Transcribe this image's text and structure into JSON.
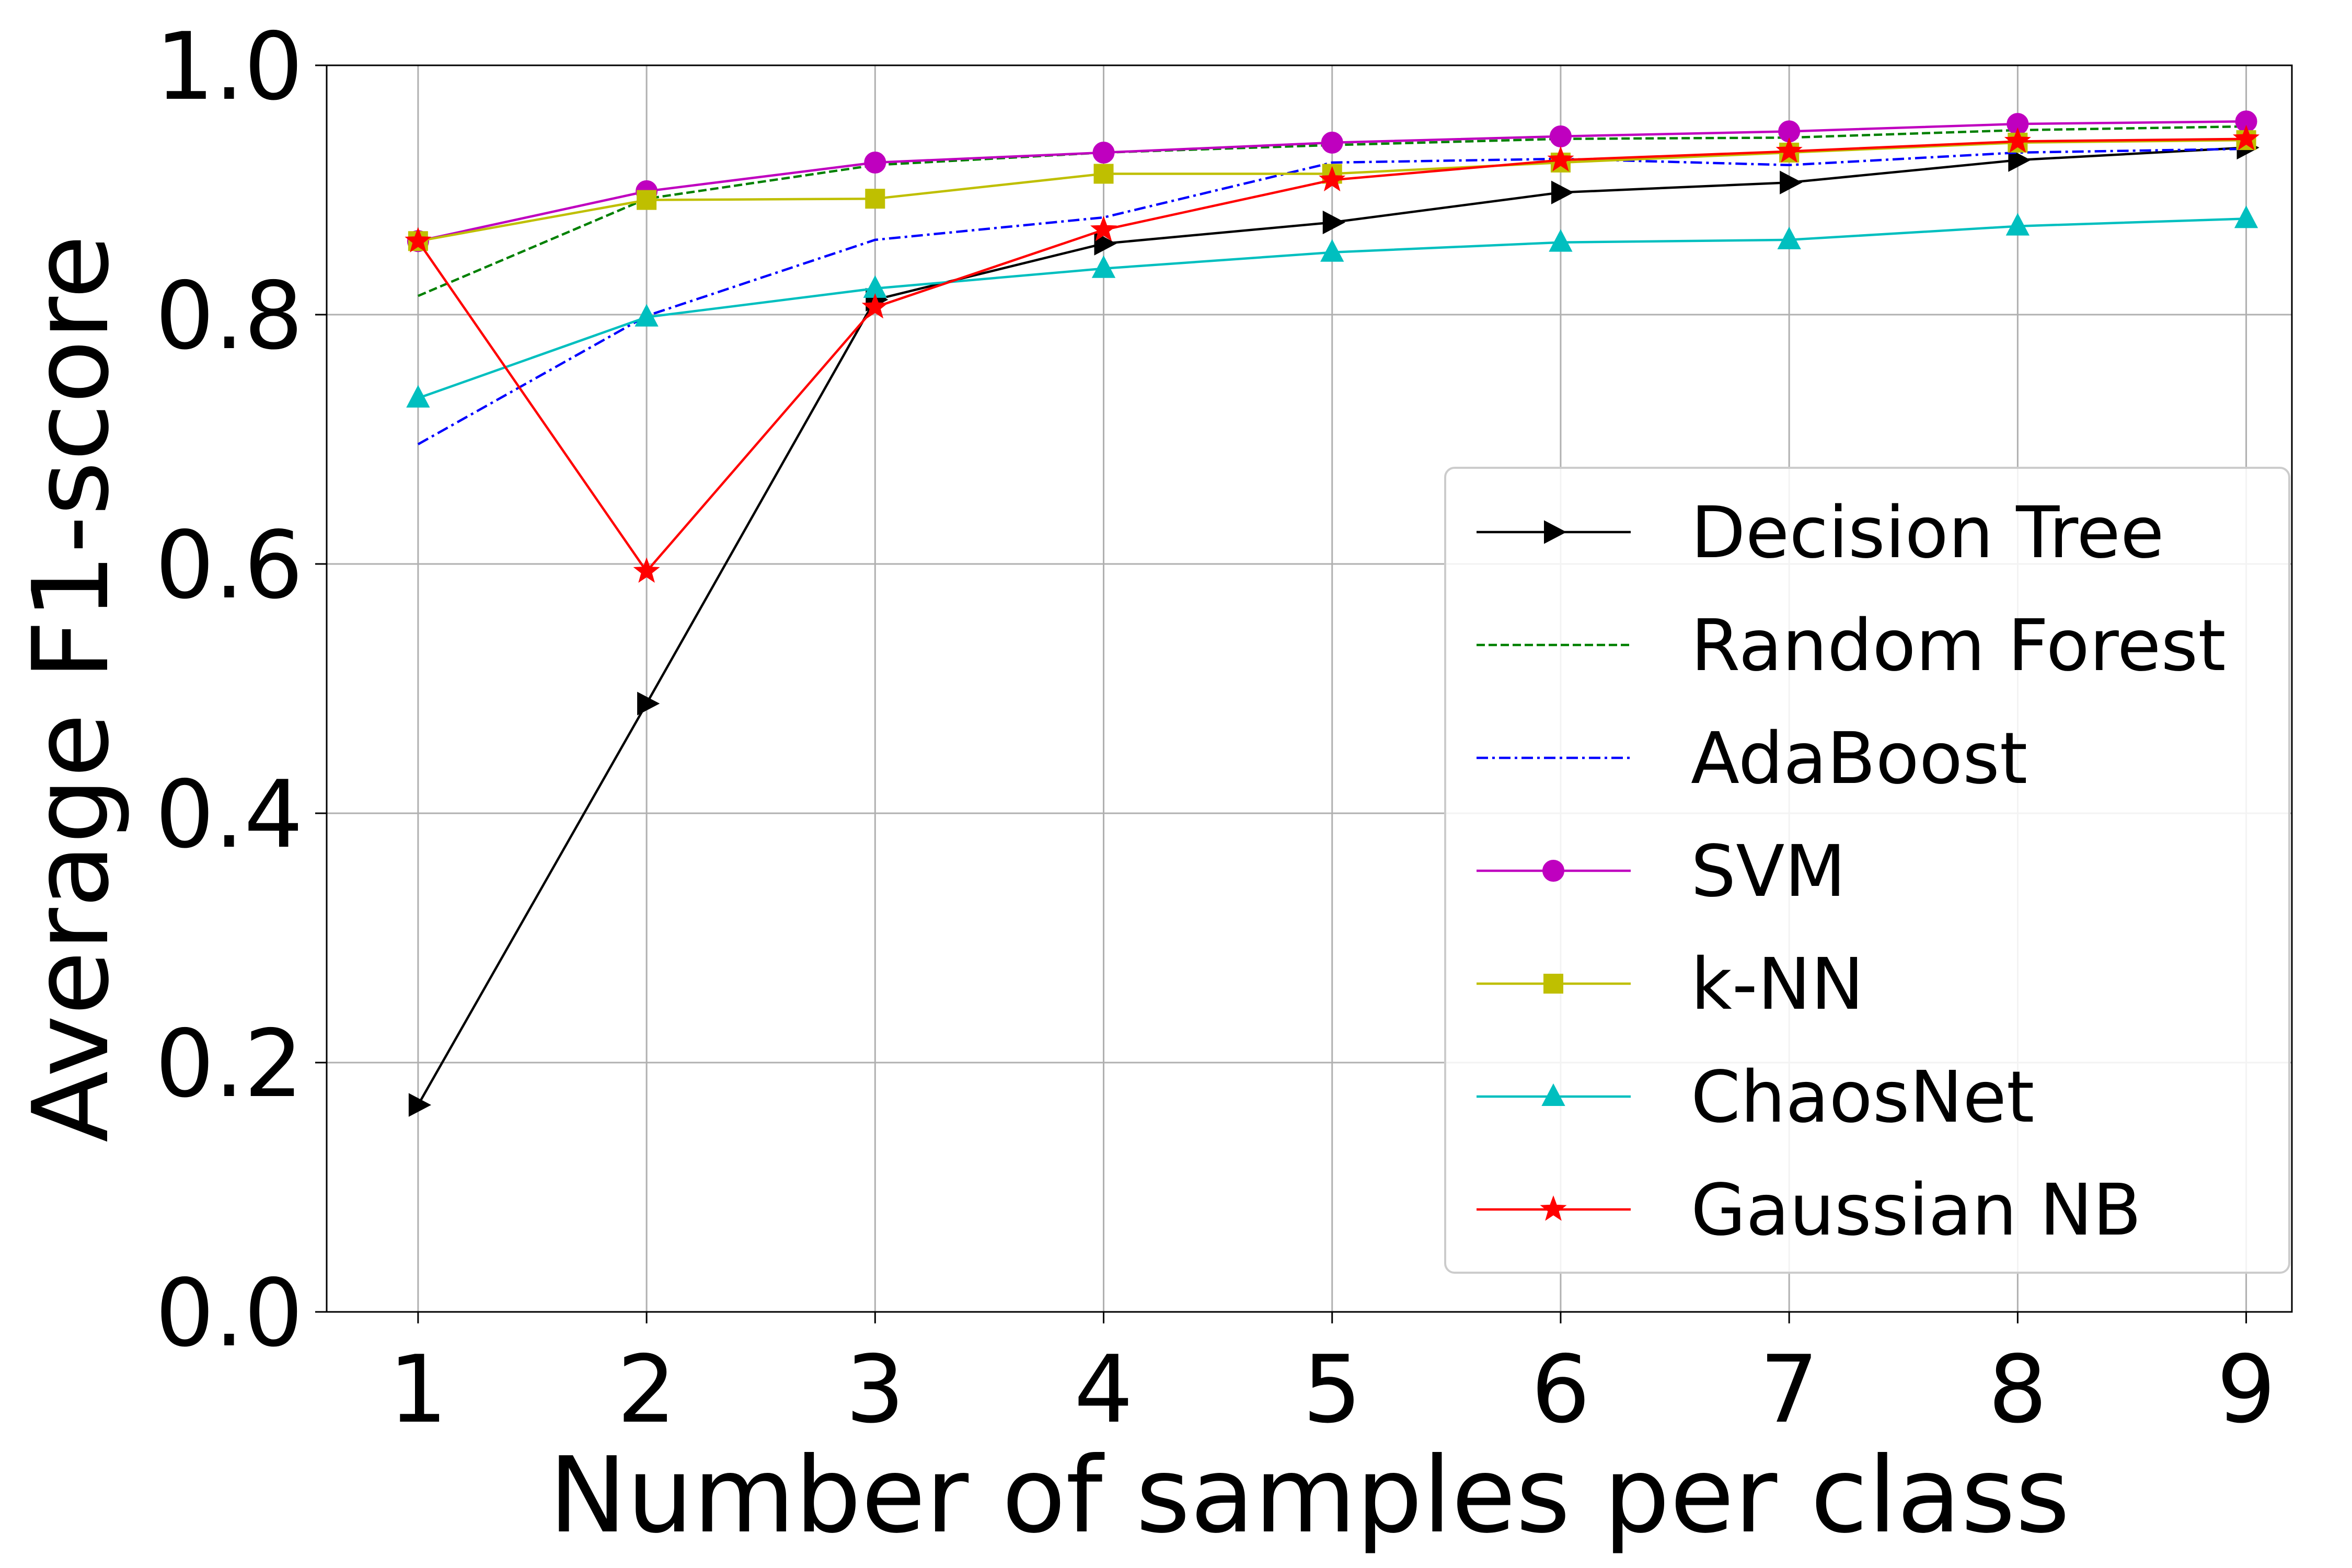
{
  "chart_data": {
    "type": "line",
    "xlabel": "Number of samples per class",
    "ylabel": "Average F1-score",
    "x": [
      1,
      2,
      3,
      4,
      5,
      6,
      7,
      8,
      9
    ],
    "xticks": [
      "1",
      "2",
      "3",
      "4",
      "5",
      "6",
      "7",
      "8",
      "9"
    ],
    "yticks": [
      "0.0",
      "0.2",
      "0.4",
      "0.6",
      "0.8",
      "1.0"
    ],
    "xlim": [
      0.6,
      9.2
    ],
    "ylim": [
      0.0,
      1.0
    ],
    "grid": true,
    "legend_position": "lower-right",
    "series": [
      {
        "name": "Decision Tree",
        "color": "#000000",
        "dash": "solid",
        "marker": "triangle-right",
        "values": [
          0.166,
          0.488,
          0.812,
          0.857,
          0.874,
          0.898,
          0.906,
          0.924,
          0.934
        ]
      },
      {
        "name": "Random Forest",
        "color": "#008000",
        "dash": "dashed",
        "marker": "none",
        "values": [
          0.815,
          0.893,
          0.92,
          0.93,
          0.936,
          0.941,
          0.942,
          0.948,
          0.951
        ]
      },
      {
        "name": "AdaBoost",
        "color": "#0000ff",
        "dash": "dashdot",
        "marker": "none",
        "values": [
          0.696,
          0.799,
          0.86,
          0.878,
          0.922,
          0.925,
          0.92,
          0.93,
          0.933
        ]
      },
      {
        "name": "SVM",
        "color": "#bf00bf",
        "dash": "solid",
        "marker": "circle",
        "values": [
          0.859,
          0.899,
          0.922,
          0.93,
          0.938,
          0.943,
          0.947,
          0.953,
          0.955
        ]
      },
      {
        "name": "k-NN",
        "color": "#bfbf00",
        "dash": "solid",
        "marker": "square",
        "values": [
          0.859,
          0.892,
          0.893,
          0.913,
          0.913,
          0.922,
          0.93,
          0.938,
          0.94
        ]
      },
      {
        "name": "ChaosNet",
        "color": "#00bfbf",
        "dash": "solid",
        "marker": "triangle-up",
        "values": [
          0.733,
          0.798,
          0.821,
          0.837,
          0.85,
          0.858,
          0.86,
          0.871,
          0.877
        ]
      },
      {
        "name": "Gaussian NB",
        "color": "#ff0000",
        "dash": "solid",
        "marker": "star",
        "values": [
          0.859,
          0.594,
          0.806,
          0.868,
          0.908,
          0.924,
          0.931,
          0.939,
          0.941
        ]
      }
    ]
  }
}
